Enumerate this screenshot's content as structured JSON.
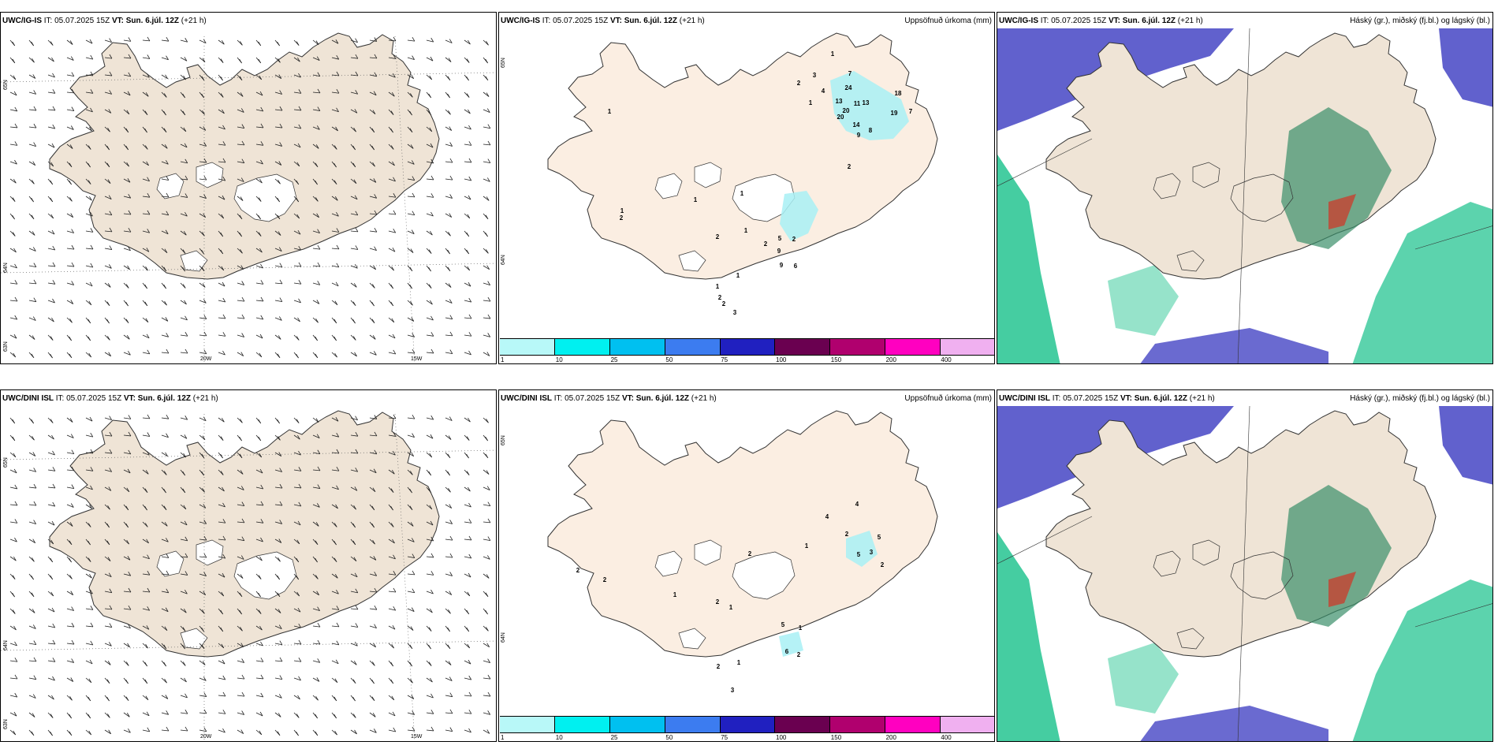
{
  "rows": [
    {
      "model": "UWC/IG-IS",
      "it_label": "IT:",
      "it_value": "05.07.2025 15Z",
      "vt_label": "VT:",
      "vt_value": "Sun. 6.júl. 12Z",
      "lead": "(+21 h)",
      "precip_title": "Uppsöfnuð úrkoma (mm)",
      "cloud_title": "Háský (gr.), miðský (fj.bl.) og lágský (bl.)",
      "lon_labels": [
        "20W",
        "15W"
      ],
      "lat_labels": [
        "65N",
        "64N",
        "65N",
        "64N",
        "63N"
      ],
      "precip_values": [
        "1",
        "1",
        "7",
        "3",
        "2",
        "4",
        "24",
        "18",
        "13",
        "1",
        "11",
        "20",
        "13",
        "19",
        "7",
        "20",
        "14",
        "8",
        "9",
        "2",
        "1",
        "1",
        "1",
        "2",
        "1",
        "2",
        "2",
        "2",
        "5",
        "9",
        "9",
        "6",
        "1",
        "1",
        "2",
        "2",
        "3"
      ]
    },
    {
      "model": "UWC/DINI ISL",
      "it_label": "IT:",
      "it_value": "05.07.2025 15Z",
      "vt_label": "VT:",
      "vt_value": "Sun. 6.júl. 12Z",
      "lead": "(+21 h)",
      "precip_title": "Uppsöfnuð úrkoma (mm)",
      "cloud_title": "Háský (gr.), miðský (fj.bl.) og lágský (bl.)",
      "lon_labels": [
        "20W",
        "15W"
      ],
      "lat_labels": [
        "65N",
        "64N",
        "65N",
        "64N",
        "63N"
      ],
      "precip_values": [
        "2",
        "2",
        "4",
        "4",
        "2",
        "5",
        "5",
        "3",
        "2",
        "1",
        "2",
        "1",
        "1",
        "2",
        "1",
        "5",
        "6",
        "2",
        "1",
        "2",
        "3"
      ]
    }
  ],
  "colorbar": {
    "colors": [
      "#b8f8f8",
      "#00f0f0",
      "#00c0f0",
      "#3c7cf0",
      "#2020c0",
      "#6a0050",
      "#b0006e",
      "#ff00c0",
      "#f0b0f0"
    ],
    "ticks": [
      "1",
      "10",
      "25",
      "50",
      "75",
      "100",
      "150",
      "200",
      "400"
    ]
  },
  "map_colors": {
    "land": "#efe4d6",
    "land_precip": "#fbeee2",
    "precip_light": "#a8f0f5",
    "high_cloud": "#3a8f6a",
    "mid_cloud": "#17c08a",
    "low_cloud": "#5050c8"
  }
}
